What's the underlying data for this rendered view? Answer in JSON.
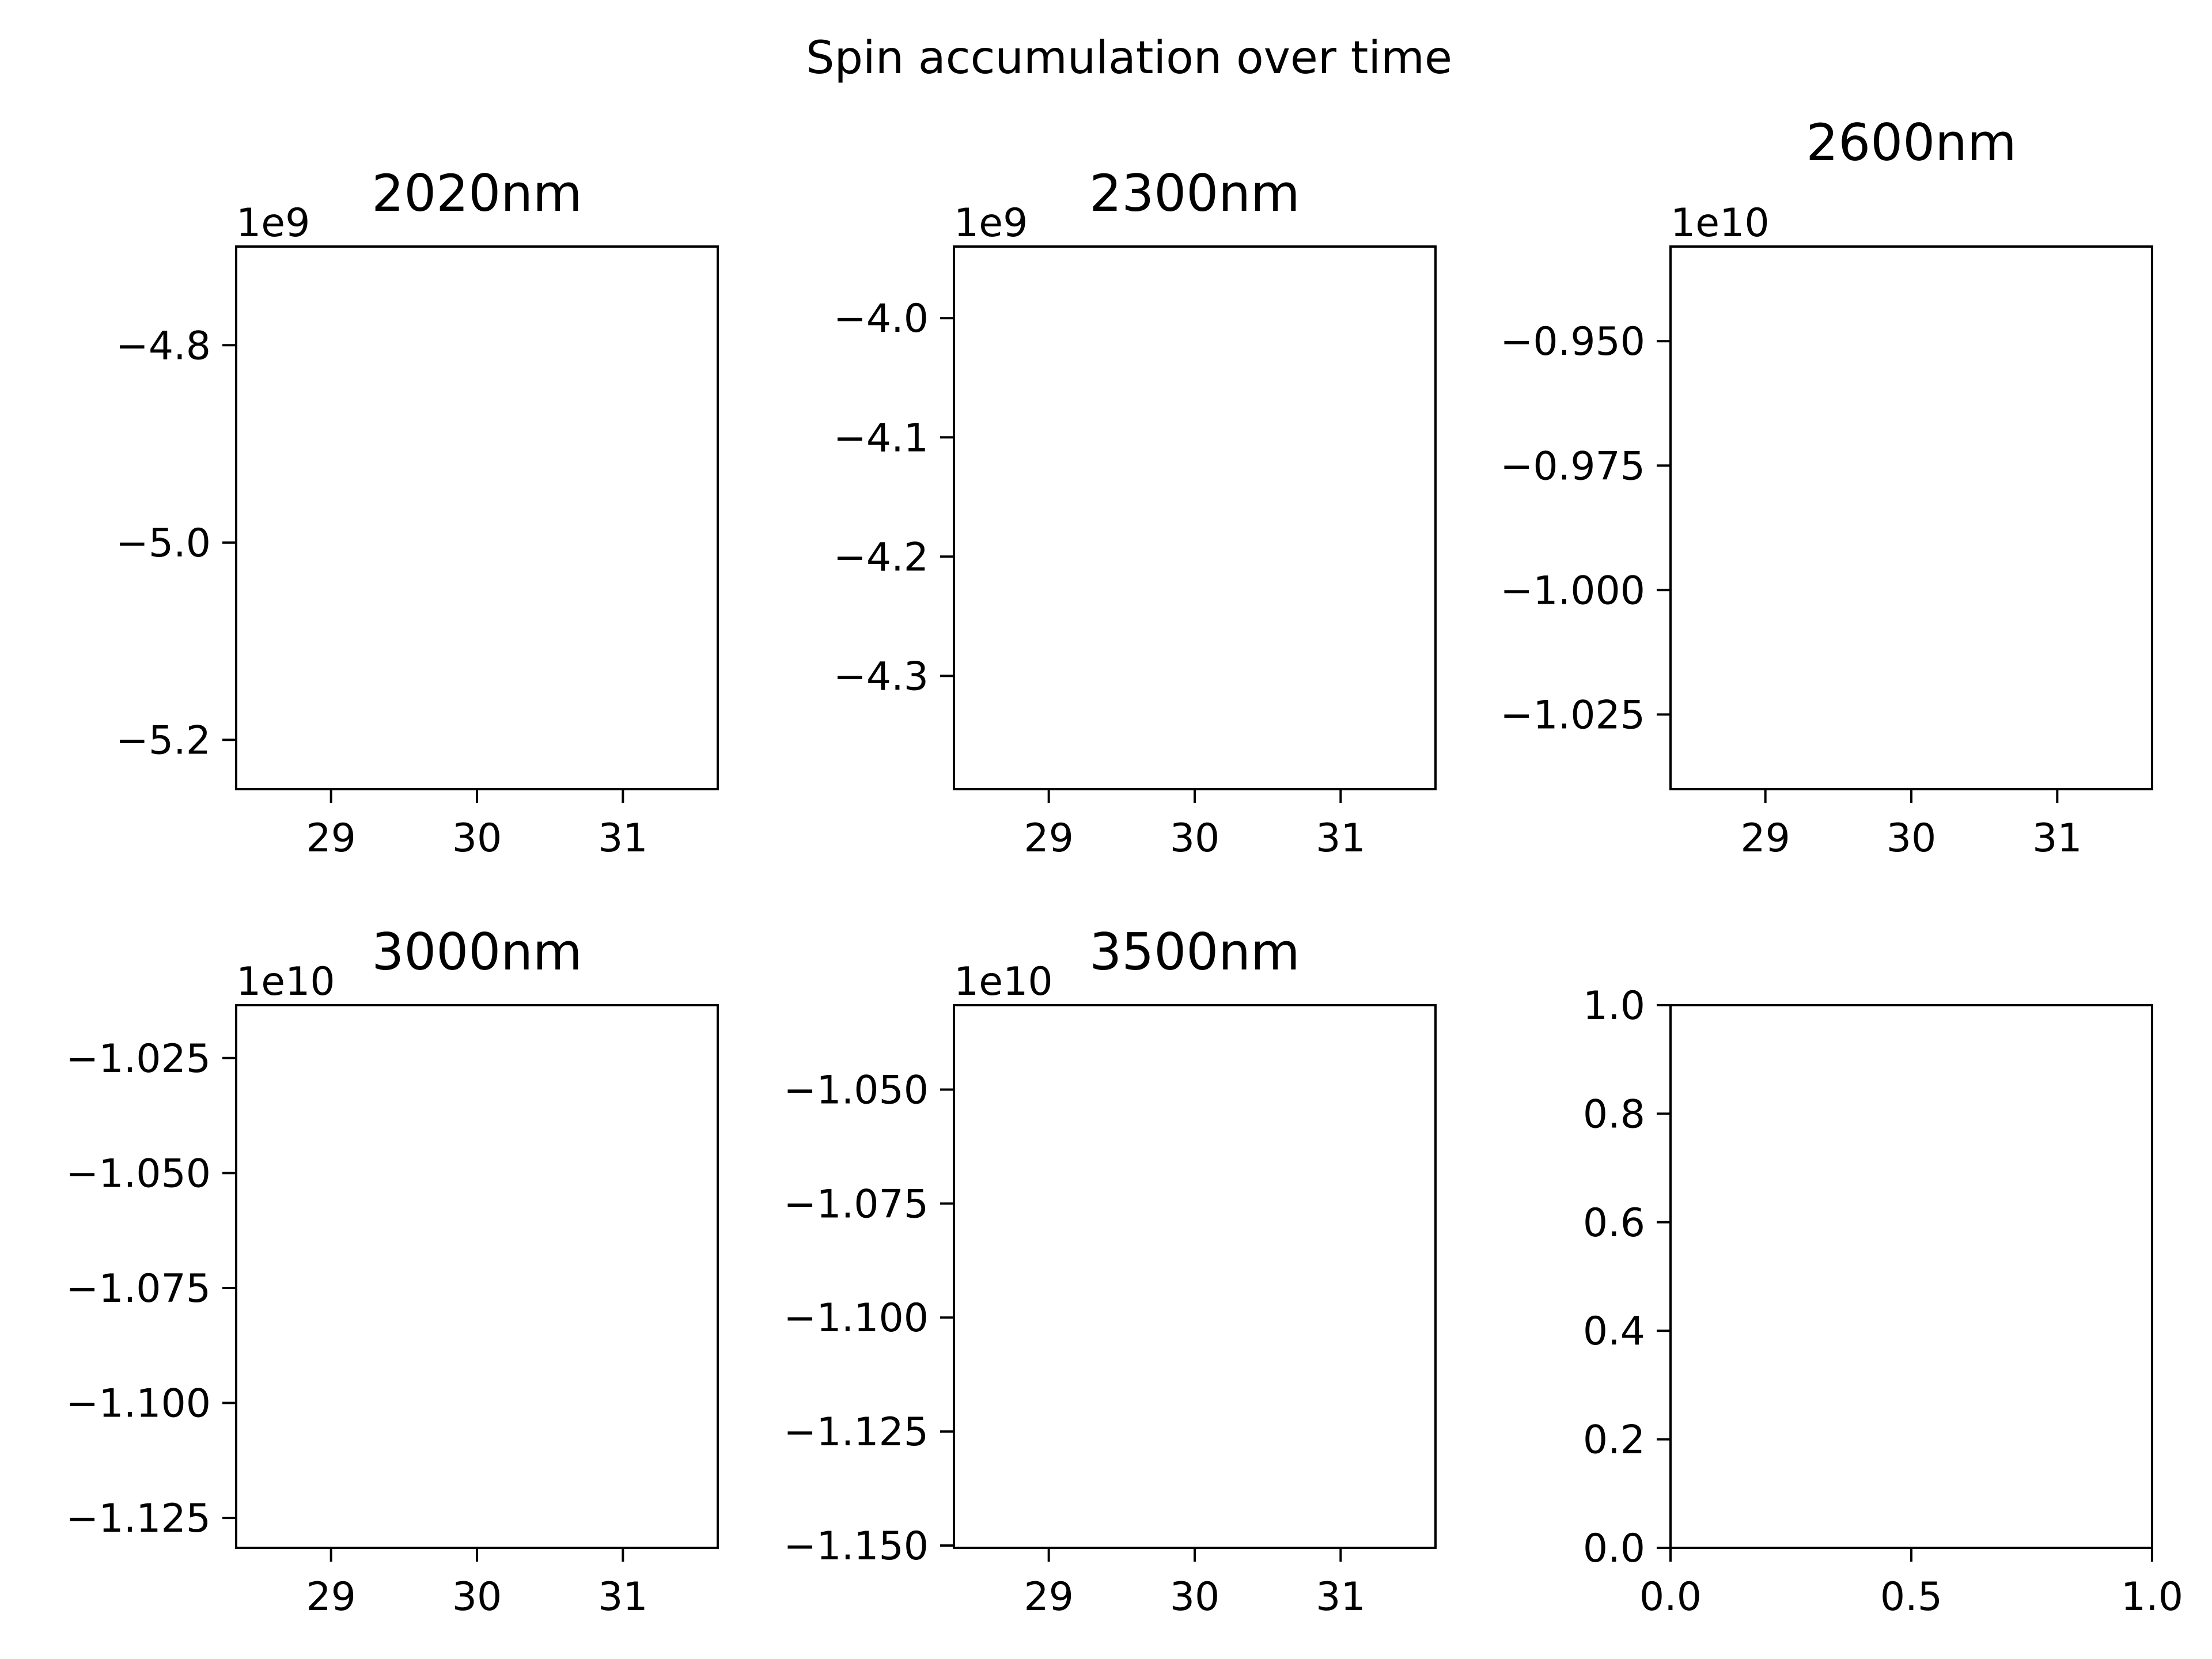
{
  "figure": {
    "suptitle": "Spin accumulation over time"
  },
  "chart_data": [
    {
      "type": "line",
      "title": "2020nm",
      "offset_text": "1e9",
      "xlim": [
        28.35,
        31.65
      ],
      "ylim": [
        -5.25,
        -4.7
      ],
      "xticks": [
        29,
        30,
        31
      ],
      "xtick_labels": [
        "29",
        "30",
        "31"
      ],
      "yticks": [
        -4.8,
        -5.0,
        -5.2
      ],
      "ytick_labels": [
        "−4.8",
        "−5.0",
        "−5.2"
      ],
      "series": [],
      "grid": false
    },
    {
      "type": "line",
      "title": "2300nm",
      "offset_text": "1e9",
      "xlim": [
        28.35,
        31.65
      ],
      "ylim": [
        -4.395,
        -3.94
      ],
      "xticks": [
        29,
        30,
        31
      ],
      "xtick_labels": [
        "29",
        "30",
        "31"
      ],
      "yticks": [
        -4.0,
        -4.1,
        -4.2,
        -4.3
      ],
      "ytick_labels": [
        "−4.0",
        "−4.1",
        "−4.2",
        "−4.3"
      ],
      "series": [],
      "grid": false
    },
    {
      "type": "line",
      "title": "2600nm",
      "offset_text": "1e10",
      "xlim": [
        28.35,
        31.65
      ],
      "ylim": [
        -1.04,
        -0.931
      ],
      "xticks": [
        29,
        30,
        31
      ],
      "xtick_labels": [
        "29",
        "30",
        "31"
      ],
      "yticks": [
        -0.95,
        -0.975,
        -1.0,
        -1.025
      ],
      "ytick_labels": [
        "−0.950",
        "−0.975",
        "−1.000",
        "−1.025"
      ],
      "series": [],
      "grid": false
    },
    {
      "type": "line",
      "title": "3000nm",
      "offset_text": "1e10",
      "xlim": [
        28.35,
        31.65
      ],
      "ylim": [
        -1.1315,
        -1.0135
      ],
      "xticks": [
        29,
        30,
        31
      ],
      "xtick_labels": [
        "29",
        "30",
        "31"
      ],
      "yticks": [
        -1.025,
        -1.05,
        -1.075,
        -1.1,
        -1.125
      ],
      "ytick_labels": [
        "−1.025",
        "−1.050",
        "−1.075",
        "−1.100",
        "−1.125"
      ],
      "series": [],
      "grid": false
    },
    {
      "type": "line",
      "title": "3500nm",
      "offset_text": "1e10",
      "xlim": [
        28.35,
        31.65
      ],
      "ylim": [
        -1.1505,
        -1.0315
      ],
      "xticks": [
        29,
        30,
        31
      ],
      "xtick_labels": [
        "29",
        "30",
        "31"
      ],
      "yticks": [
        -1.05,
        -1.075,
        -1.1,
        -1.125,
        -1.15
      ],
      "ytick_labels": [
        "−1.050",
        "−1.075",
        "−1.100",
        "−1.125",
        "−1.150"
      ],
      "series": [],
      "grid": false
    },
    {
      "type": "line",
      "title": "",
      "offset_text": "",
      "xlim": [
        0.0,
        1.0
      ],
      "ylim": [
        0.0,
        1.0
      ],
      "xticks": [
        0.0,
        0.5,
        1.0
      ],
      "xtick_labels": [
        "0.0",
        "0.5",
        "1.0"
      ],
      "yticks": [
        0.0,
        0.2,
        0.4,
        0.6,
        0.8,
        1.0
      ],
      "ytick_labels": [
        "0.0",
        "0.2",
        "0.4",
        "0.6",
        "0.8",
        "1.0"
      ],
      "series": [],
      "grid": false
    }
  ]
}
